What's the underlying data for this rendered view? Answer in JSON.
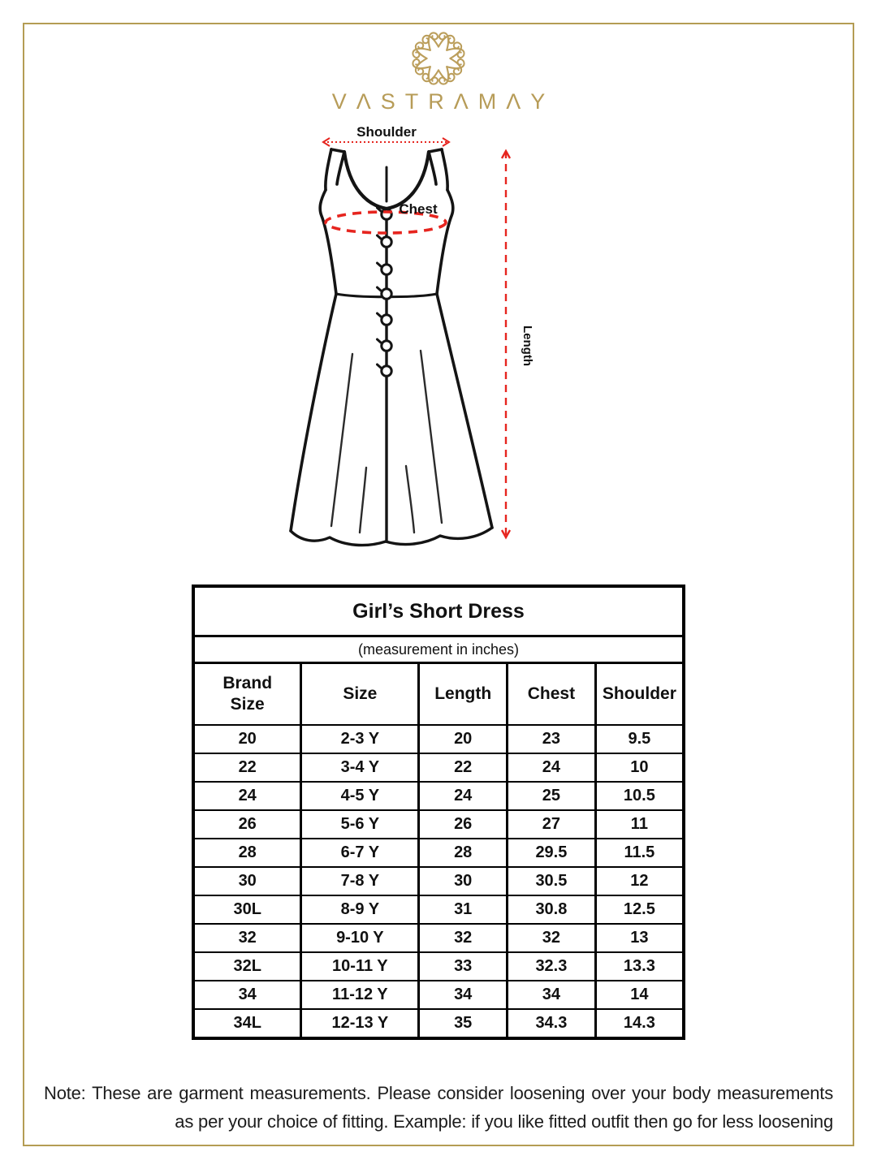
{
  "brand": {
    "name": "VASTRAMAY",
    "wordmark_display": "VΛSTRΛMΛY"
  },
  "colors": {
    "gold_frame": "#b49c54",
    "gold_logo": "#bb9e5b",
    "annotation_red": "#e6251f",
    "table_border": "#000000"
  },
  "diagram": {
    "shoulder_label": "Shoulder",
    "chest_label": "Chest",
    "length_label": "Length"
  },
  "chart_data": {
    "type": "table",
    "title": "Girl’s Short Dress",
    "subtitle": "(measurement in inches)",
    "columns": [
      "Brand\nSize",
      "Size",
      "Length",
      "Chest",
      "Shoulder"
    ],
    "column_keys": [
      "brand-size",
      "size",
      "length",
      "chest",
      "shoulder"
    ],
    "rows": [
      [
        "20",
        "2-3 Y",
        "20",
        "23",
        "9.5"
      ],
      [
        "22",
        "3-4 Y",
        "22",
        "24",
        "10"
      ],
      [
        "24",
        "4-5 Y",
        "24",
        "25",
        "10.5"
      ],
      [
        "26",
        "5-6 Y",
        "26",
        "27",
        "11"
      ],
      [
        "28",
        "6-7 Y",
        "28",
        "29.5",
        "11.5"
      ],
      [
        "30",
        "7-8 Y",
        "30",
        "30.5",
        "12"
      ],
      [
        "30L",
        "8-9 Y",
        "31",
        "30.8",
        "12.5"
      ],
      [
        "32",
        "9-10 Y",
        "32",
        "32",
        "13"
      ],
      [
        "32L",
        "10-11 Y",
        "33",
        "32.3",
        "13.3"
      ],
      [
        "34",
        "11-12 Y",
        "34",
        "34",
        "14"
      ],
      [
        "34L",
        "12-13 Y",
        "35",
        "34.3",
        "14.3"
      ]
    ]
  },
  "note": {
    "line1": "Note: These are garment measurements. Please consider loosening over your body measurements",
    "line2": "as per your choice of fitting. Example: if you like fitted outfit then go for less loosening"
  }
}
